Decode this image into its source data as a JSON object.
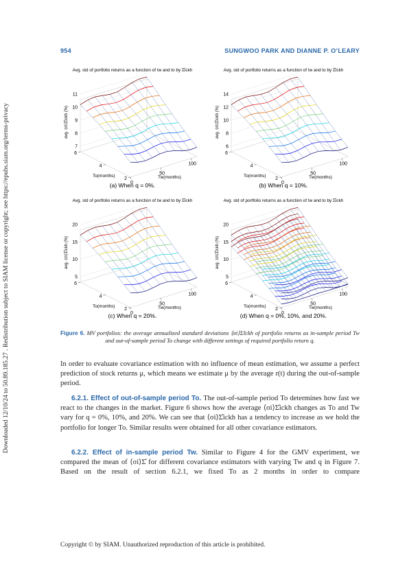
{
  "header": {
    "page_number": "954",
    "authors": "SUNGWOO PARK AND DIANNE P. O’LEARY"
  },
  "sidebar": "Downloaded 12/10/24 to 50.89.185.27 . Redistribution subject to SIAM license or copyright; see https://epubs.siam.org/terms-privacy",
  "figure": {
    "panels": [
      {
        "title": "Avg. std of portfolio returns as a function of tw and to by Σ̂ickh",
        "zlabel": "avg. ⟨σi⟩Σ̂ickh (%)",
        "zlim": [
          7,
          11
        ],
        "zticks": [
          7,
          8,
          9,
          10,
          11
        ],
        "to_lim": [
          6,
          2
        ],
        "to_ticks": [
          6,
          4,
          2
        ],
        "to_label": "To(months)",
        "tw_lim": [
          0,
          110
        ],
        "tw_ticks": [
          0,
          50,
          100
        ],
        "tw_label": "Tw(months)",
        "caption": "(a) When q = 0%."
      },
      {
        "title": "Avg. std of portfolio returns as a function of tw and to by Σ̂ickh",
        "zlabel": "avg. ⟨σi⟩Σ̂ickh (%)",
        "zlim": [
          6,
          14
        ],
        "zticks": [
          6,
          8,
          10,
          12,
          14
        ],
        "to_lim": [
          6,
          2
        ],
        "to_ticks": [
          6,
          4,
          2
        ],
        "to_label": "To(months)",
        "tw_lim": [
          0,
          110
        ],
        "tw_ticks": [
          0,
          50,
          100
        ],
        "tw_label": "Tw(months)",
        "caption": "(b) When q = 10%."
      },
      {
        "title": "Avg. std of portfolio returns as a function of tw and to by Σ̂ickh",
        "zlabel": "avg. ⟨σi⟩Σ̂ickh (%)",
        "zlim": [
          5,
          20
        ],
        "zticks": [
          5,
          10,
          15,
          20
        ],
        "to_lim": [
          6,
          2
        ],
        "to_ticks": [
          6,
          4,
          2
        ],
        "to_label": "To(months)",
        "tw_lim": [
          0,
          110
        ],
        "tw_ticks": [
          0,
          50,
          100
        ],
        "tw_label": "Tw(months)",
        "caption": "(c) When q = 20%."
      },
      {
        "title": "Avg. std of portfolio returns as a function of tw and to by Σ̂ickh",
        "zlabel": "avg. ⟨σi⟩Σ̂ickh (%)",
        "zlim": [
          5,
          20
        ],
        "zticks": [
          5,
          10,
          15,
          20
        ],
        "to_lim": [
          6,
          2
        ],
        "to_ticks": [
          6,
          4,
          2
        ],
        "to_label": "To(months)",
        "tw_lim": [
          0,
          110
        ],
        "tw_ticks": [
          0,
          50,
          100
        ],
        "tw_label": "Tw(months)",
        "caption": "(d) When q = 0%, 10%, and 20%."
      }
    ],
    "label": "Figure 6.",
    "caption": "MV portfolios: the average annualized standard deviations ⟨σi⟩Σ̂ickh of portfolio returns as in-sample period Tw and out-of-sample period To change with different settings of required portfolio return q."
  },
  "body": {
    "paragraph_1": "In order to evaluate covariance estimation with no influence of mean estimation, we assume a perfect prediction of stock returns μ, which means we estimate μ by the average r(t) during the out-of-sample period.",
    "section_1": {
      "heading": "6.2.1. Effect of out-of-sample period To.",
      "text": "The out-of-sample period To determines how fast we react to the changes in the market. Figure 6 shows how the average ⟨σi⟩Σ̂ickh changes as To and Tw vary for q = 0%, 10%, and 20%. We can see that ⟨σi⟩Σ̂ickh has a tendency to increase as we hold the portfolio for longer To. Similar results were obtained for all other covariance estimators."
    },
    "section_2": {
      "heading": "6.2.2. Effect of in-sample period Tw.",
      "text": "Similar to Figure 4 for the GMV experiment, we compared the mean of ⟨σi⟩Σ̂ for different covariance estimators with varying Tw and q in Figure 7. Based on the result of section 6.2.1, we fixed To as 2 months in order to compare"
    }
  },
  "footer": "Copyright © by SIAM. Unauthorized reproduction of this article is prohibited."
}
